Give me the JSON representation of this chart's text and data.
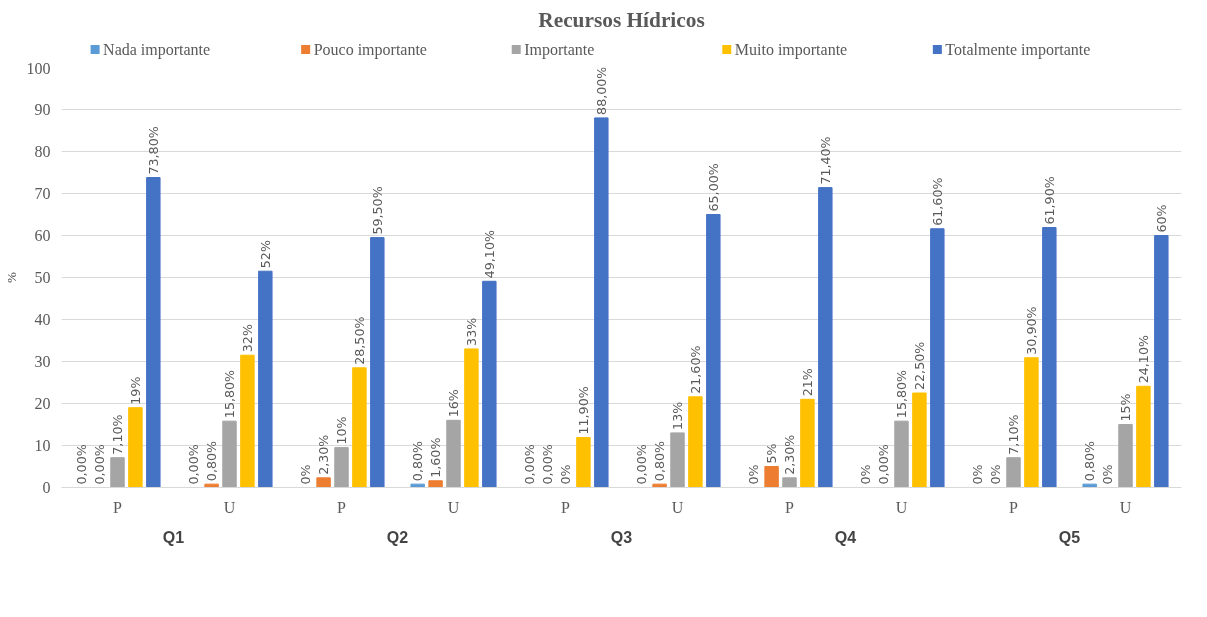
{
  "chart_data": {
    "type": "bar",
    "title": "Recursos Hídricos",
    "ylabel": "%",
    "categories": [
      "P",
      "U",
      "P",
      "U",
      "P",
      "U",
      "P",
      "U",
      "P",
      "U"
    ],
    "annotations": [
      "Q1",
      "Q2",
      "Q3",
      "Q4",
      "Q5"
    ],
    "series": [
      {
        "name": "Nada importante",
        "color": "#5b9bd5",
        "values": [
          0,
          0,
          0,
          0.8,
          0,
          0,
          0,
          0,
          0,
          0.8
        ],
        "value_labels": [
          "0,00%",
          "0,00%",
          "0%",
          "0,80%",
          "0,00%",
          "0,00%",
          "0%",
          "0%",
          "0%",
          "0,80%"
        ]
      },
      {
        "name": "Pouco importante",
        "color": "#ed7d31",
        "values": [
          0,
          0.8,
          2.3,
          1.6,
          0,
          0.8,
          5,
          0,
          0,
          0
        ],
        "value_labels": [
          "0,00%",
          "0,80%",
          "2,30%",
          "1,60%",
          "0,00%",
          "0,80%",
          "5%",
          "0,00%",
          "0%",
          "0%"
        ]
      },
      {
        "name": "Importante",
        "color": "#a5a5a5",
        "values": [
          7.1,
          15.8,
          9.5,
          16,
          0,
          13,
          2.3,
          15.8,
          7.1,
          15
        ],
        "value_labels": [
          "7,10%",
          "15,80%",
          "10%",
          "16%",
          "0%",
          "13%",
          "2,30%",
          "15,80%",
          "7,10%",
          "15%"
        ]
      },
      {
        "name": "Muito importante",
        "color": "#ffc000",
        "values": [
          19,
          31.5,
          28.5,
          33,
          11.9,
          21.6,
          21,
          22.5,
          30.9,
          24.1
        ],
        "value_labels": [
          "19%",
          "32%",
          "28,50%",
          "33%",
          "11,90%",
          "21,60%",
          "21%",
          "22,50%",
          "30,90%",
          "24,10%"
        ]
      },
      {
        "name": "Totalmente importante",
        "color": "#4472c4",
        "values": [
          73.8,
          51.5,
          59.5,
          49.1,
          88,
          65,
          71.4,
          61.6,
          61.9,
          60
        ],
        "value_labels": [
          "73,80%",
          "52%",
          "59,50%",
          "49,10%",
          "88,00%",
          "65,00%",
          "71,40%",
          "61,60%",
          "61,90%",
          "60%"
        ]
      }
    ],
    "ylim": [
      0,
      100
    ],
    "yticks": [
      0,
      10,
      20,
      30,
      40,
      50,
      60,
      70,
      80,
      90,
      100
    ],
    "grid": "y",
    "legend": "top"
  }
}
